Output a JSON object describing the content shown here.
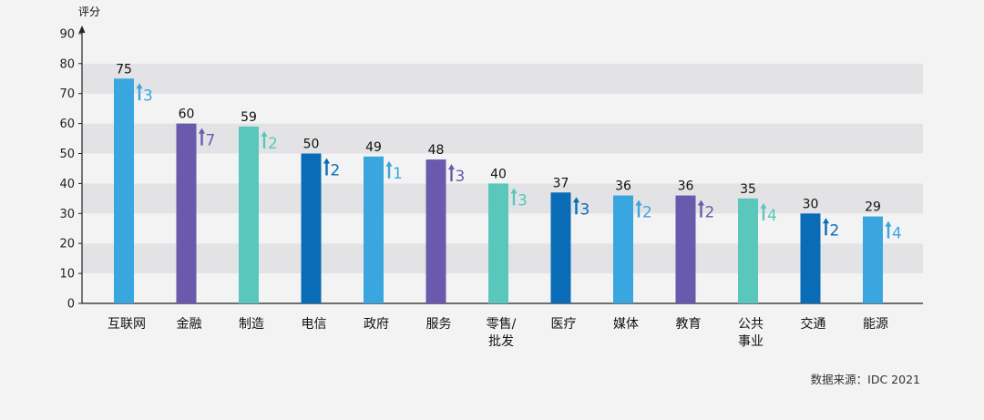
{
  "chart_data": {
    "type": "bar",
    "ylabel": "评分",
    "ylim": [
      0,
      90
    ],
    "yticks": [
      0,
      10,
      20,
      30,
      40,
      50,
      60,
      70,
      80,
      90
    ],
    "grid": "alternating horizontal bands",
    "categories": [
      [
        "互联网"
      ],
      [
        "金融"
      ],
      [
        "制造"
      ],
      [
        "电信"
      ],
      [
        "政府"
      ],
      [
        "服务"
      ],
      [
        "零售/",
        "批发"
      ],
      [
        "医疗"
      ],
      [
        "媒体"
      ],
      [
        "教育"
      ],
      [
        "公共",
        "事业"
      ],
      [
        "交通"
      ],
      [
        "能源"
      ]
    ],
    "values": [
      75,
      60,
      59,
      50,
      49,
      48,
      40,
      37,
      36,
      36,
      35,
      30,
      29
    ],
    "increase": [
      "3",
      "7",
      "2",
      "2",
      "1",
      "3",
      "3",
      "3",
      "2",
      "2",
      "4",
      "2",
      "4"
    ],
    "colors": [
      "#3aa6df",
      "#6a5aad",
      "#5ac7bd",
      "#0a6cb7",
      "#3aa6df",
      "#6a5aad",
      "#5ac7bd",
      "#0a6cb7",
      "#3aa6df",
      "#6a5aad",
      "#5ac7bd",
      "#0a6cb7",
      "#3aa6df"
    ],
    "source": "数据来源：IDC 2021"
  }
}
